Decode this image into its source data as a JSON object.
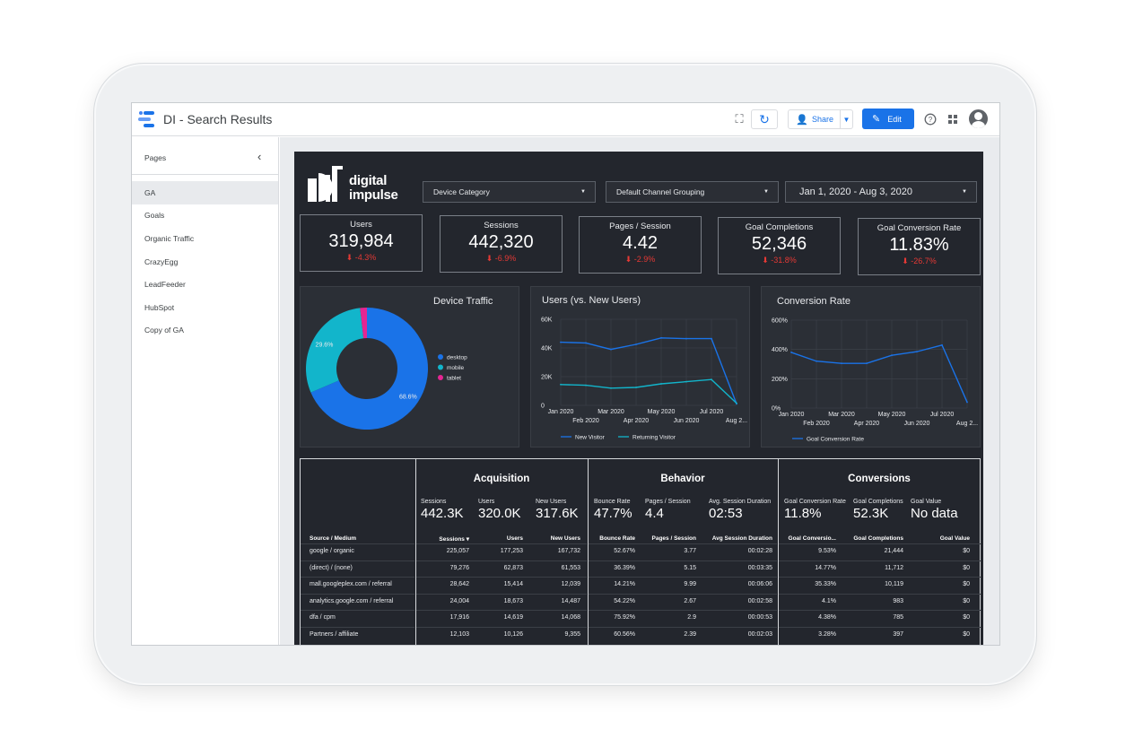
{
  "app": {
    "title": "DI - Search Results",
    "share_label": "Share",
    "edit_label": "Edit"
  },
  "sidebar": {
    "heading": "Pages",
    "items": [
      "GA",
      "Goals",
      "Organic Traffic",
      "CrazyEgg",
      "LeadFeeder",
      "HubSpot",
      "Copy of GA"
    ],
    "active": "GA"
  },
  "report": {
    "brand_line1": "digital",
    "brand_line2": "impulse",
    "filters": {
      "device": "Device Category",
      "channel": "Default Channel Grouping",
      "date": "Jan 1, 2020 - Aug 3, 2020"
    },
    "kpis": [
      {
        "label": "Users",
        "value": "319,984",
        "delta": "⬇ -4.3%"
      },
      {
        "label": "Sessions",
        "value": "442,320",
        "delta": "⬇ -6.9%"
      },
      {
        "label": "Pages / Session",
        "value": "4.42",
        "delta": "⬇ -2.9%"
      },
      {
        "label": "Goal Completions",
        "value": "52,346",
        "delta": "⬇ -31.8%"
      },
      {
        "label": "Goal Conversion Rate",
        "value": "11.83%",
        "delta": "⬇ -26.7%"
      }
    ],
    "panels": {
      "device_title": "Device Traffic",
      "users_title": "Users (vs. New Users)",
      "conv_title": "Conversion Rate"
    },
    "table": {
      "sections": [
        "Acquisition",
        "Behavior",
        "Conversions"
      ],
      "summary": [
        {
          "label": "Sessions",
          "value": "442.3K"
        },
        {
          "label": "Users",
          "value": "320.0K"
        },
        {
          "label": "New Users",
          "value": "317.6K"
        },
        {
          "label": "Bounce Rate",
          "value": "47.7%"
        },
        {
          "label": "Pages / Session",
          "value": "4.4"
        },
        {
          "label": "Avg. Session Duration",
          "value": "02:53"
        },
        {
          "label": "Goal Conversion Rate",
          "value": "11.8%"
        },
        {
          "label": "Goal Completions",
          "value": "52.3K"
        },
        {
          "label": "Goal Value",
          "value": "No data"
        }
      ],
      "headers": [
        "Source / Medium",
        "Sessions ▾",
        "Users",
        "New Users",
        "Bounce Rate",
        "Pages / Session",
        "Avg Session Duration",
        "Goal Conversio...",
        "Goal Completions",
        "Goal Value"
      ],
      "rows": [
        [
          "google / organic",
          "225,057",
          "177,253",
          "167,732",
          "52.67%",
          "3.77",
          "00:02:28",
          "9.53%",
          "21,444",
          "$0"
        ],
        [
          "(direct) / (none)",
          "79,276",
          "62,873",
          "61,553",
          "36.39%",
          "5.15",
          "00:03:35",
          "14.77%",
          "11,712",
          "$0"
        ],
        [
          "mall.googleplex.com / referral",
          "28,642",
          "15,414",
          "12,039",
          "14.21%",
          "9.99",
          "00:06:06",
          "35.33%",
          "10,119",
          "$0"
        ],
        [
          "analytics.google.com / referral",
          "24,004",
          "18,673",
          "14,487",
          "54.22%",
          "2.67",
          "00:02:58",
          "4.1%",
          "983",
          "$0"
        ],
        [
          "dfa / cpm",
          "17,916",
          "14,619",
          "14,068",
          "75.92%",
          "2.9",
          "00:00:53",
          "4.38%",
          "785",
          "$0"
        ],
        [
          "Partners / affiliate",
          "12,103",
          "10,126",
          "9,355",
          "60.56%",
          "2.39",
          "00:02:03",
          "3.28%",
          "397",
          "$0"
        ]
      ]
    }
  },
  "chart_data": [
    {
      "type": "pie",
      "title": "Device Traffic",
      "categories": [
        "desktop",
        "mobile",
        "tablet"
      ],
      "values": [
        68.6,
        29.6,
        1.8
      ],
      "colors": [
        "#1a73e8",
        "#12b5cb",
        "#e52592"
      ],
      "data_labels": [
        "68.6%",
        "29.6%",
        ""
      ],
      "legend": "right"
    },
    {
      "type": "line",
      "title": "Users (vs. New Users)",
      "x": [
        "Jan 2020",
        "Feb 2020",
        "Mar 2020",
        "Apr 2020",
        "May 2020",
        "Jun 2020",
        "Jul 2020",
        "Aug 2..."
      ],
      "x_ticks_top": [
        "Jan 2020",
        "Mar 2020",
        "May 2020",
        "Jul 2020"
      ],
      "x_ticks_bottom": [
        "Feb 2020",
        "Apr 2020",
        "Jun 2020",
        "Aug 2..."
      ],
      "series": [
        {
          "name": "New Visitor",
          "values": [
            44000,
            43500,
            39000,
            42500,
            47000,
            46500,
            46500,
            1000
          ],
          "color": "#1a73e8"
        },
        {
          "name": "Returning Visitor",
          "values": [
            14500,
            14000,
            12000,
            12500,
            15000,
            16500,
            18000,
            1500
          ],
          "color": "#12b5cb"
        }
      ],
      "ylim": [
        0,
        60000
      ],
      "y_ticks": [
        "0",
        "20K",
        "40K",
        "60K"
      ],
      "legend": "bottom",
      "grid": true
    },
    {
      "type": "line",
      "title": "Conversion Rate",
      "x": [
        "Jan 2020",
        "Feb 2020",
        "Mar 2020",
        "Apr 2020",
        "May 2020",
        "Jun 2020",
        "Jul 2020",
        "Aug 2..."
      ],
      "x_ticks_top": [
        "Jan 2020",
        "Mar 2020",
        "May 2020",
        "Jul 2020"
      ],
      "x_ticks_bottom": [
        "Feb 2020",
        "Apr 2020",
        "Jun 2020",
        "Aug 2..."
      ],
      "series": [
        {
          "name": "Goal Conversion Rate",
          "values": [
            380,
            320,
            305,
            305,
            360,
            385,
            430,
            40
          ],
          "color": "#1a73e8"
        }
      ],
      "ylim": [
        0,
        600
      ],
      "y_ticks": [
        "0%",
        "200%",
        "400%",
        "600%"
      ],
      "legend": "bottom",
      "grid": true
    }
  ]
}
